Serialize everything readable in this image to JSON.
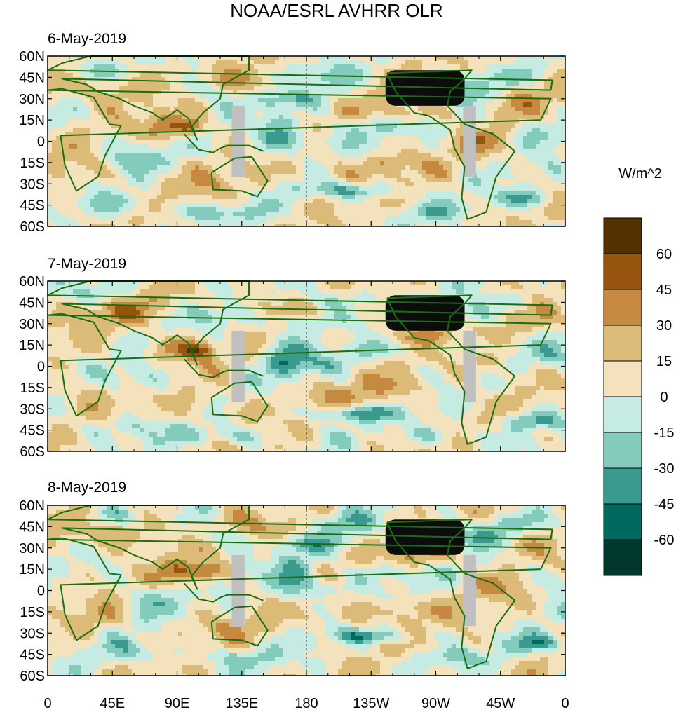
{
  "chart_data": {
    "type": "heatmap",
    "title": "NOAA/ESRL AVHRR OLR",
    "units": "W/m^2",
    "panels": [
      {
        "date": "6-May-2019"
      },
      {
        "date": "7-May-2019"
      },
      {
        "date": "8-May-2019"
      }
    ],
    "x_ticks": [
      {
        "lon": 0,
        "label": "0"
      },
      {
        "lon": 45,
        "label": "45E"
      },
      {
        "lon": 90,
        "label": "90E"
      },
      {
        "lon": 135,
        "label": "135E"
      },
      {
        "lon": 180,
        "label": "180"
      },
      {
        "lon": 225,
        "label": "135W"
      },
      {
        "lon": 270,
        "label": "90W"
      },
      {
        "lon": 315,
        "label": "45W"
      },
      {
        "lon": 360,
        "label": "0"
      }
    ],
    "y_ticks": [
      {
        "lat": 60,
        "label": "60N"
      },
      {
        "lat": 45,
        "label": "45N"
      },
      {
        "lat": 30,
        "label": "30N"
      },
      {
        "lat": 15,
        "label": "15N"
      },
      {
        "lat": 0,
        "label": "0"
      },
      {
        "lat": -15,
        "label": "15S"
      },
      {
        "lat": -30,
        "label": "30S"
      },
      {
        "lat": -45,
        "label": "45S"
      },
      {
        "lat": -60,
        "label": "60S"
      }
    ],
    "xlim": [
      0,
      360
    ],
    "ylim": [
      -60,
      60
    ],
    "colorbar": {
      "levels": [
        -60,
        -45,
        -30,
        -15,
        0,
        15,
        30,
        45,
        60
      ],
      "labels": [
        "-60",
        "-45",
        "-30",
        "-15",
        "0",
        "15",
        "30",
        "45",
        "60"
      ],
      "colors": [
        "#00382e",
        "#006a5e",
        "#3a9a8f",
        "#82cbbd",
        "#c6ebe3",
        "#f4e2bd",
        "#dcbb78",
        "#c58a3f",
        "#96540f",
        "#553000"
      ]
    },
    "features": {
      "coastline_color": "#1a6e12",
      "missing_color": "#c0c0c0",
      "dateline_lon": 180,
      "missing_strips": [
        {
          "lon": [
            128,
            137
          ],
          "lat": [
            -25,
            25
          ]
        },
        {
          "lon": [
            289,
            298
          ],
          "lat": [
            -25,
            25
          ]
        }
      ],
      "dark_region": {
        "lon": [
          235,
          290
        ],
        "lat": [
          25,
          50
        ]
      }
    }
  }
}
